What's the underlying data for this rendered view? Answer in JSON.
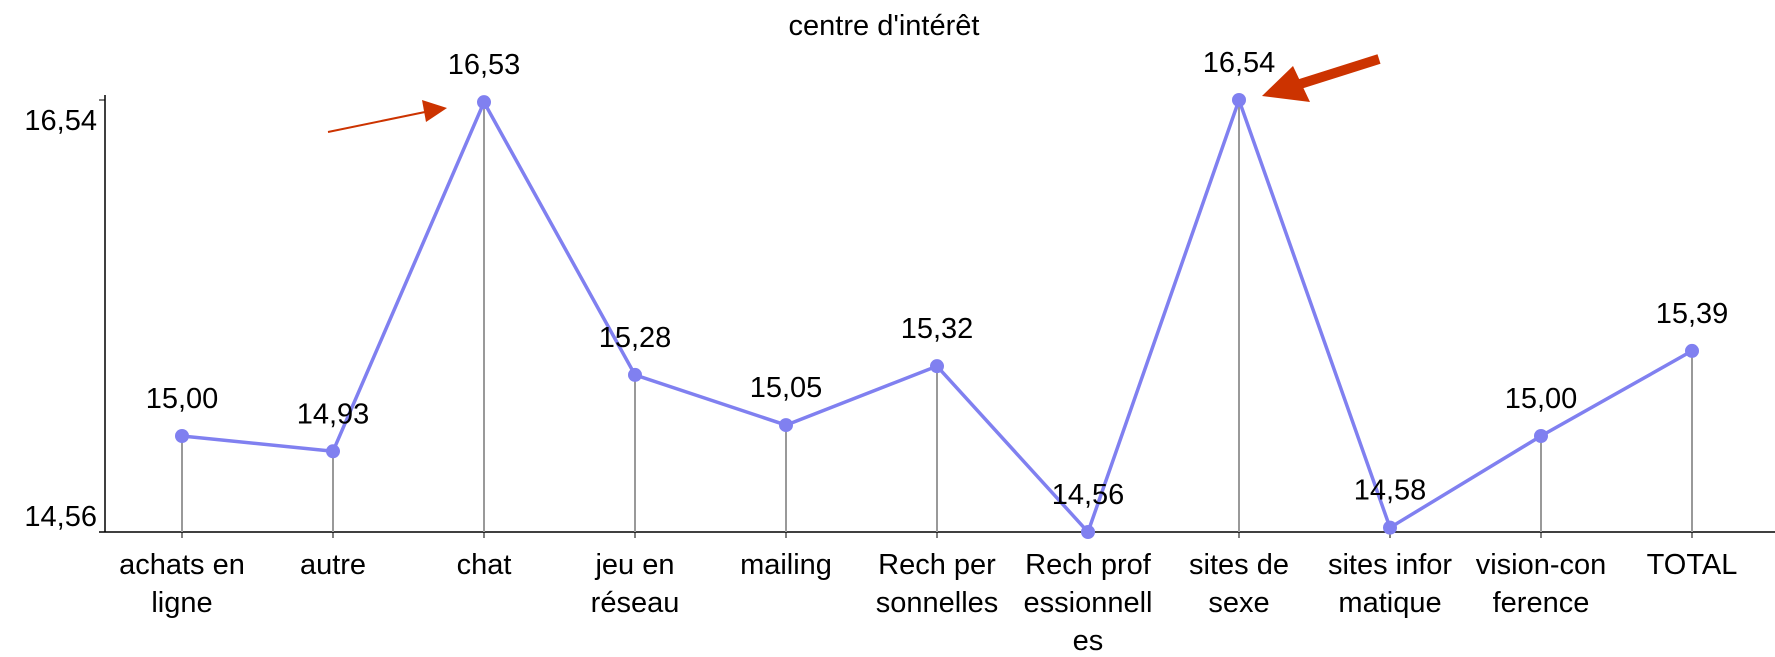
{
  "chart_data": {
    "type": "line",
    "title": "centre d'intérêt",
    "categories": [
      [
        "achats en",
        "ligne"
      ],
      [
        "autre"
      ],
      [
        "chat"
      ],
      [
        "jeu en",
        "réseau"
      ],
      [
        "mailing"
      ],
      [
        "Rech per",
        "sonnelles"
      ],
      [
        "Rech prof",
        "essionnell",
        "es"
      ],
      [
        "sites de",
        "sexe"
      ],
      [
        "sites infor",
        "matique"
      ],
      [
        "vision-con",
        "ference"
      ],
      [
        "TOTAL"
      ]
    ],
    "series": [
      {
        "color": "#8080f0",
        "values": [
          15.0,
          14.93,
          16.53,
          15.28,
          15.05,
          15.32,
          14.56,
          16.54,
          14.58,
          15.0,
          15.39
        ],
        "value_labels": [
          "15,00",
          "14,93",
          "16,53",
          "15,28",
          "15,05",
          "15,32",
          "14,56",
          "16,54",
          "14,58",
          "15,00",
          "15,39"
        ]
      }
    ],
    "ylim": [
      14.56,
      16.54
    ],
    "yticks": [
      {
        "value": 14.56,
        "label": "14,56"
      },
      {
        "value": 16.54,
        "label": "16,54"
      }
    ]
  }
}
